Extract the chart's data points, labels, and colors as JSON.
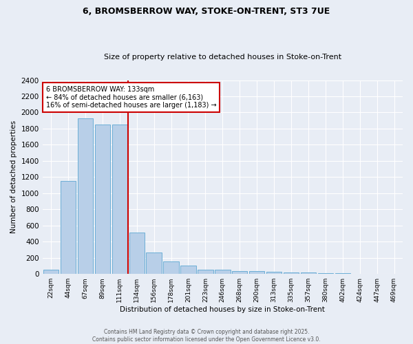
{
  "title1": "6, BROMSBERROW WAY, STOKE-ON-TRENT, ST3 7UE",
  "title2": "Size of property relative to detached houses in Stoke-on-Trent",
  "xlabel": "Distribution of detached houses by size in Stoke-on-Trent",
  "ylabel": "Number of detached properties",
  "categories": [
    "22sqm",
    "44sqm",
    "67sqm",
    "89sqm",
    "111sqm",
    "134sqm",
    "156sqm",
    "178sqm",
    "201sqm",
    "223sqm",
    "246sqm",
    "268sqm",
    "290sqm",
    "313sqm",
    "335sqm",
    "357sqm",
    "380sqm",
    "402sqm",
    "424sqm",
    "447sqm",
    "469sqm"
  ],
  "values": [
    55,
    1150,
    1930,
    1850,
    1850,
    510,
    265,
    155,
    100,
    55,
    55,
    40,
    35,
    25,
    20,
    15,
    10,
    8,
    5,
    3,
    2
  ],
  "bar_color": "#b8cfe8",
  "bar_edge_color": "#6baed6",
  "bg_color": "#e8edf5",
  "grid_color": "#ffffff",
  "vline_x_idx": 5,
  "vline_color": "#cc0000",
  "annotation_text": "6 BROMSBERROW WAY: 133sqm\n← 84% of detached houses are smaller (6,163)\n16% of semi-detached houses are larger (1,183) →",
  "annotation_box_color": "#ffffff",
  "annotation_box_edge": "#cc0000",
  "footer1": "Contains HM Land Registry data © Crown copyright and database right 2025.",
  "footer2": "Contains public sector information licensed under the Open Government Licence v3.0.",
  "ylim": [
    0,
    2400
  ],
  "yticks": [
    0,
    200,
    400,
    600,
    800,
    1000,
    1200,
    1400,
    1600,
    1800,
    2000,
    2200,
    2400
  ]
}
